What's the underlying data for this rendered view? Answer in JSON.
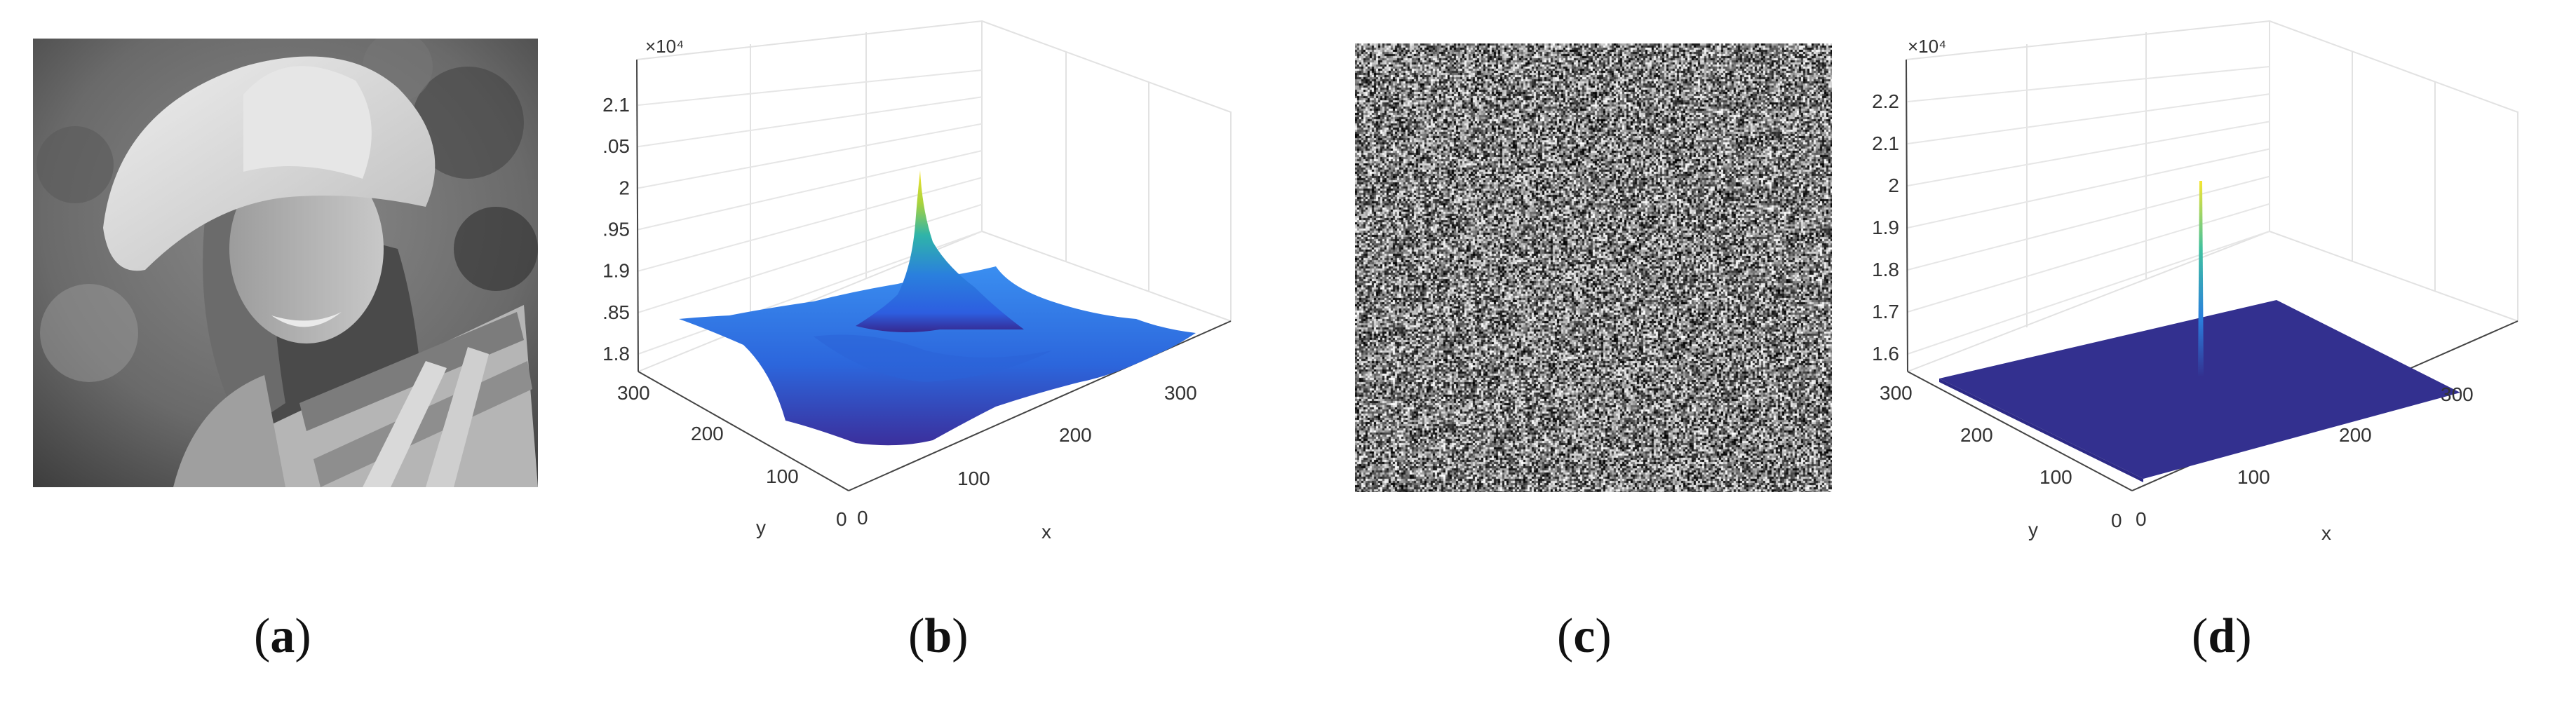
{
  "figure": {
    "panels": [
      {
        "id": "a",
        "label": "a",
        "kind": "grayscale photograph"
      },
      {
        "id": "b",
        "label": "b",
        "kind": "3d surface"
      },
      {
        "id": "c",
        "label": "c",
        "kind": "noise image"
      },
      {
        "id": "d",
        "label": "d",
        "kind": "3d surface"
      }
    ]
  },
  "chart_data": [
    {
      "type": "surface",
      "panel": "b",
      "exponent_label": "×10⁴",
      "zticks": [
        "1.8",
        "1.85",
        "1.9",
        "1.95",
        "2",
        "2.05",
        "2.1"
      ],
      "zlim": [
        1.8,
        2.1
      ],
      "xticks": [
        "0",
        "100",
        "200",
        "300"
      ],
      "yticks": [
        "0",
        "100",
        "200",
        "300"
      ],
      "xlabel": "x",
      "ylabel": "y",
      "xlim": [
        0,
        300
      ],
      "ylim": [
        0,
        300
      ],
      "surface_base": 1.845,
      "peak": {
        "x": 128,
        "y": 128,
        "z": 2.03
      },
      "grid": true,
      "colormap": "parula"
    },
    {
      "type": "surface",
      "panel": "d",
      "exponent_label": "×10⁴",
      "zticks": [
        "1.6",
        "1.7",
        "1.8",
        "1.9",
        "2",
        "2.1",
        "2.2"
      ],
      "zlim": [
        1.6,
        2.2
      ],
      "xticks": [
        "0",
        "100",
        "200",
        "300"
      ],
      "yticks": [
        "0",
        "100",
        "200",
        "300"
      ],
      "xlabel": "x",
      "ylabel": "y",
      "xlim": [
        0,
        300
      ],
      "ylim": [
        0,
        300
      ],
      "surface_base": 1.64,
      "peak": {
        "x": 128,
        "y": 128,
        "z": 2.05
      },
      "grid": true,
      "colormap": "parula"
    }
  ]
}
